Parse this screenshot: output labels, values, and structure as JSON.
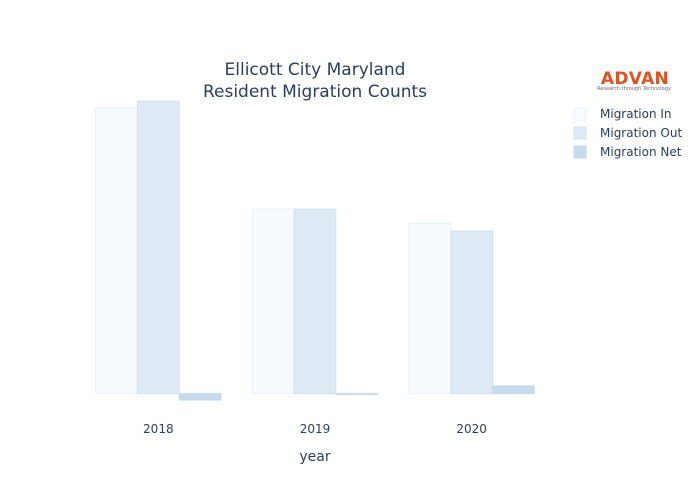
{
  "chart_data": {
    "type": "bar",
    "title_lines": [
      "Ellicott City Maryland",
      "Resident Migration Counts"
    ],
    "xlabel": "year",
    "ylabel": "",
    "categories": [
      "2018",
      "2019",
      "2020"
    ],
    "series": [
      {
        "name": "Migration In",
        "values": [
          1100,
          710,
          655
        ],
        "color": "#f7fbff",
        "stroke": "#e9f0f7"
      },
      {
        "name": "Migration Out",
        "values": [
          1125,
          710,
          625
        ],
        "color": "#deebf7",
        "stroke": "#d3e2f0"
      },
      {
        "name": "Migration Net",
        "values": [
          -25,
          0,
          30
        ],
        "color": "#c6dbef",
        "stroke": "#c6dbef"
      }
    ],
    "ylim": [
      -40,
      1130
    ],
    "grid": false,
    "legend_position": "top-right"
  },
  "logo": {
    "word": "ADVAN",
    "tagline": "Research through Technology",
    "color": "#e0521f"
  }
}
